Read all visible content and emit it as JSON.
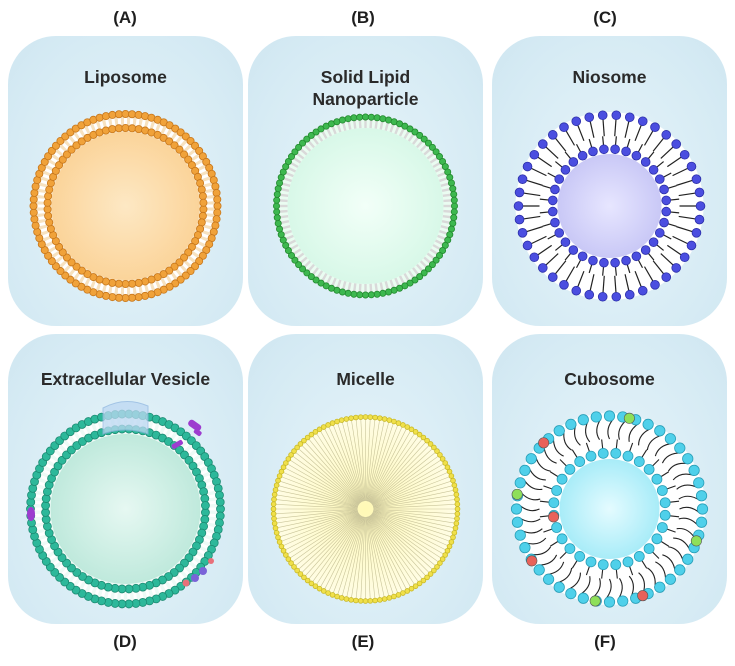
{
  "panels": [
    {
      "letter": "(A)",
      "title_lines": [
        "Liposome"
      ]
    },
    {
      "letter": "(B)",
      "title_lines": [
        "Solid Lipid",
        "Nanoparticle"
      ]
    },
    {
      "letter": "(C)",
      "title_lines": [
        "Niosome"
      ]
    },
    {
      "letter": "(D)",
      "title_lines": [
        "Extracellular Vesicle"
      ]
    },
    {
      "letter": "(E)",
      "title_lines": [
        "Micelle"
      ]
    },
    {
      "letter": "(F)",
      "title_lines": [
        "Cubosome"
      ]
    }
  ],
  "colors": {
    "panel_background": "#d6ebf4",
    "liposome_head": "#f0a23a",
    "liposome_core": "#fbd49a",
    "sln_head": "#3db84f",
    "sln_core": "#d8f8e8",
    "niosome_head": "#4b4ee0",
    "niosome_core": "#c9c8f6",
    "ev_head": "#2db89a",
    "ev_core": "#bfe9dc",
    "ev_protein": "#9d3ccf",
    "micelle_head": "#f0e04a",
    "micelle_core": "#fff7a8",
    "cubosome_head": "#4fd0ea",
    "cubosome_core": "#a8ecf8",
    "cubosome_accent_red": "#e8625a",
    "cubosome_accent_green": "#8ee05a"
  }
}
